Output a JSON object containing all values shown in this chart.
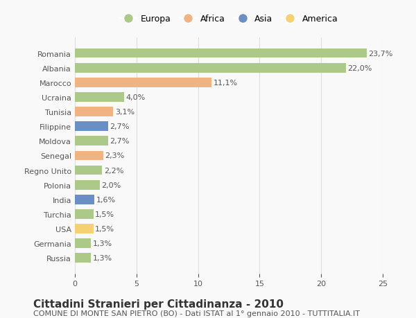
{
  "categories": [
    "Romania",
    "Albania",
    "Marocco",
    "Ucraina",
    "Tunisia",
    "Filippine",
    "Moldova",
    "Senegal",
    "Regno Unito",
    "Polonia",
    "India",
    "Turchia",
    "USA",
    "Germania",
    "Russia"
  ],
  "values": [
    23.7,
    22.0,
    11.1,
    4.0,
    3.1,
    2.7,
    2.7,
    2.3,
    2.2,
    2.0,
    1.6,
    1.5,
    1.5,
    1.3,
    1.3
  ],
  "labels": [
    "23,7%",
    "22,0%",
    "11,1%",
    "4,0%",
    "3,1%",
    "2,7%",
    "2,7%",
    "2,3%",
    "2,2%",
    "2,0%",
    "1,6%",
    "1,5%",
    "1,5%",
    "1,3%",
    "1,3%"
  ],
  "continents": [
    "Europa",
    "Europa",
    "Africa",
    "Europa",
    "Africa",
    "Asia",
    "Europa",
    "Africa",
    "Europa",
    "Europa",
    "Asia",
    "Europa",
    "America",
    "Europa",
    "Europa"
  ],
  "colors": {
    "Europa": "#adc98a",
    "Africa": "#f0b482",
    "Asia": "#6a8fc4",
    "America": "#f5d174"
  },
  "legend_order": [
    "Europa",
    "Africa",
    "Asia",
    "America"
  ],
  "xlim": [
    0,
    25
  ],
  "xticks": [
    0,
    5,
    10,
    15,
    20,
    25
  ],
  "title": "Cittadini Stranieri per Cittadinanza - 2010",
  "subtitle": "COMUNE DI MONTE SAN PIETRO (BO) - Dati ISTAT al 1° gennaio 2010 - TUTTITALIA.IT",
  "background_color": "#f9f9f9",
  "grid_color": "#dddddd",
  "bar_height": 0.65,
  "title_fontsize": 11,
  "subtitle_fontsize": 8,
  "label_fontsize": 8,
  "tick_fontsize": 8
}
